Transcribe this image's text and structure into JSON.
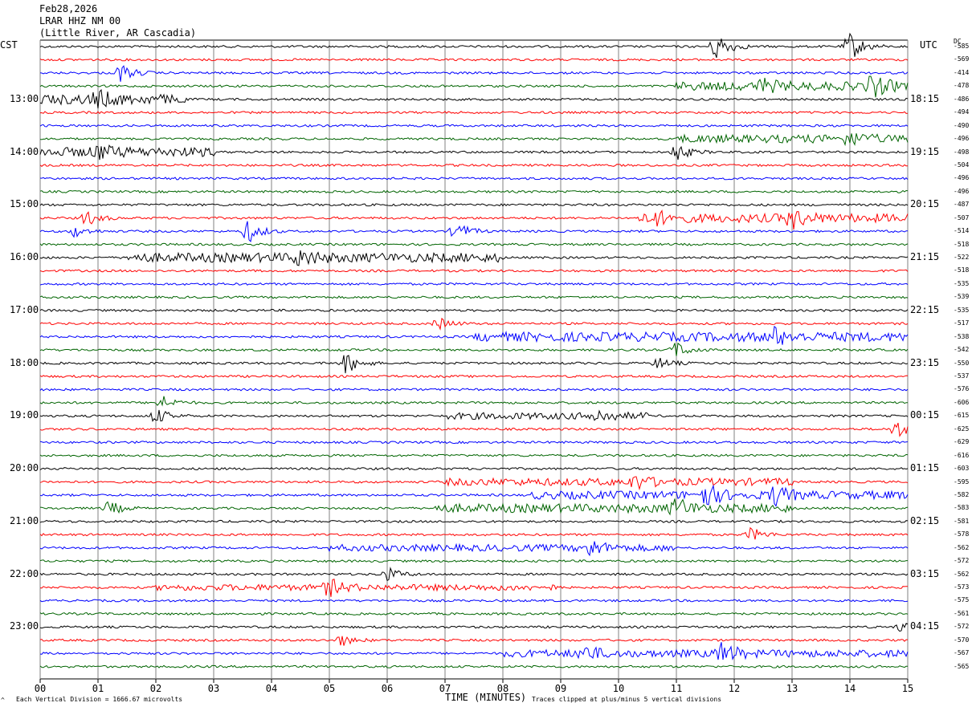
{
  "header": {
    "date": "Feb28,2026",
    "station": "LRAR HHZ NM 00",
    "location": "(Little River, AR Cascadia)"
  },
  "left_timezone": "CST",
  "right_timezone": "UTC",
  "dc_header": "DC",
  "footer": {
    "scale_note": "Each Vertical Division = 1666.67 microvolts",
    "clip_note": "Traces clipped at plus/minus 5 vertical divisions",
    "corner_mark": "^"
  },
  "colors": {
    "cycle": [
      "#000000",
      "#ff0000",
      "#0000ff",
      "#006400"
    ],
    "grid": "#808080"
  },
  "chart_data": {
    "type": "seismogram_helicorder",
    "xlabel": "TIME (MINUTES)",
    "x_ticks": [
      "00",
      "01",
      "02",
      "03",
      "04",
      "05",
      "06",
      "07",
      "08",
      "09",
      "10",
      "11",
      "12",
      "13",
      "14",
      "15"
    ],
    "xlim": [
      0,
      15
    ],
    "minutes_per_line": 15,
    "line_count": 48,
    "left_time_labels": [
      {
        "line": 4,
        "label": "13:00"
      },
      {
        "line": 8,
        "label": "14:00"
      },
      {
        "line": 12,
        "label": "15:00"
      },
      {
        "line": 16,
        "label": "16:00"
      },
      {
        "line": 20,
        "label": "17:00"
      },
      {
        "line": 24,
        "label": "18:00"
      },
      {
        "line": 28,
        "label": "19:00"
      },
      {
        "line": 32,
        "label": "20:00"
      },
      {
        "line": 36,
        "label": "21:00"
      },
      {
        "line": 40,
        "label": "22:00"
      },
      {
        "line": 44,
        "label": "23:00"
      }
    ],
    "right_time_labels": [
      {
        "line": 4,
        "label": "18:15"
      },
      {
        "line": 8,
        "label": "19:15"
      },
      {
        "line": 12,
        "label": "20:15"
      },
      {
        "line": 16,
        "label": "21:15"
      },
      {
        "line": 20,
        "label": "22:15"
      },
      {
        "line": 24,
        "label": "23:15"
      },
      {
        "line": 28,
        "label": "00:15"
      },
      {
        "line": 32,
        "label": "01:15"
      },
      {
        "line": 36,
        "label": "02:15"
      },
      {
        "line": 40,
        "label": "03:15"
      },
      {
        "line": 44,
        "label": "04:15"
      }
    ],
    "dc_offsets": [
      "-585",
      "-569",
      "-414",
      "-478",
      "-486",
      "-494",
      "-490",
      "-496",
      "-498",
      "-504",
      "-496",
      "-496",
      "-487",
      "-507",
      "-514",
      "-518",
      "-522",
      "-518",
      "-535",
      "-539",
      "-535",
      "-517",
      "-538",
      "-542",
      "-550",
      "-537",
      "-576",
      "-606",
      "-615",
      "-625",
      "-629",
      "-616",
      "-603",
      "-595",
      "-582",
      "-583",
      "-581",
      "-578",
      "-562",
      "-572",
      "-562",
      "-573",
      "-575",
      "-561",
      "-572",
      "-570",
      "-567",
      "-565"
    ],
    "events": [
      {
        "line": 0,
        "minute": 11.7,
        "amplitude": 2.6
      },
      {
        "line": 0,
        "minute": 14.0,
        "amplitude": 2.6
      },
      {
        "line": 2,
        "minute": 1.4,
        "amplitude": 1.6
      },
      {
        "line": 3,
        "minute": 12.5,
        "amplitude": 1.0
      },
      {
        "line": 3,
        "minute": 14.4,
        "amplitude": 1.8
      },
      {
        "line": 4,
        "minute": 1.0,
        "amplitude": 1.2
      },
      {
        "line": 7,
        "minute": 14.0,
        "amplitude": 1.0
      },
      {
        "line": 8,
        "minute": 1.0,
        "amplitude": 1.1
      },
      {
        "line": 8,
        "minute": 11.0,
        "amplitude": 1.6
      },
      {
        "line": 13,
        "minute": 0.8,
        "amplitude": 1.3
      },
      {
        "line": 13,
        "minute": 10.6,
        "amplitude": 1.2
      },
      {
        "line": 13,
        "minute": 13.0,
        "amplitude": 1.5
      },
      {
        "line": 14,
        "minute": 0.6,
        "amplitude": 1.0
      },
      {
        "line": 14,
        "minute": 3.6,
        "amplitude": 2.0
      },
      {
        "line": 14,
        "minute": 7.2,
        "amplitude": 1.6
      },
      {
        "line": 16,
        "minute": 4.5,
        "amplitude": 1.2
      },
      {
        "line": 21,
        "minute": 6.9,
        "amplitude": 1.0
      },
      {
        "line": 22,
        "minute": 12.7,
        "amplitude": 1.3
      },
      {
        "line": 23,
        "minute": 11.0,
        "amplitude": 1.4
      },
      {
        "line": 24,
        "minute": 5.3,
        "amplitude": 1.9
      },
      {
        "line": 24,
        "minute": 10.7,
        "amplitude": 1.0
      },
      {
        "line": 27,
        "minute": 2.1,
        "amplitude": 1.3
      },
      {
        "line": 28,
        "minute": 2.0,
        "amplitude": 1.4
      },
      {
        "line": 28,
        "minute": 9.6,
        "amplitude": 1.0
      },
      {
        "line": 29,
        "minute": 14.8,
        "amplitude": 1.6
      },
      {
        "line": 33,
        "minute": 10.3,
        "amplitude": 1.1
      },
      {
        "line": 34,
        "minute": 11.5,
        "amplitude": 1.9
      },
      {
        "line": 34,
        "minute": 12.7,
        "amplitude": 1.5
      },
      {
        "line": 35,
        "minute": 1.2,
        "amplitude": 1.3
      },
      {
        "line": 35,
        "minute": 11.0,
        "amplitude": 1.6
      },
      {
        "line": 37,
        "minute": 12.3,
        "amplitude": 1.2
      },
      {
        "line": 38,
        "minute": 9.5,
        "amplitude": 1.4
      },
      {
        "line": 40,
        "minute": 6.0,
        "amplitude": 1.2
      },
      {
        "line": 41,
        "minute": 5.0,
        "amplitude": 1.4
      },
      {
        "line": 44,
        "minute": 14.9,
        "amplitude": 1.0
      },
      {
        "line": 45,
        "minute": 5.2,
        "amplitude": 1.0
      },
      {
        "line": 46,
        "minute": 9.4,
        "amplitude": 1.3
      },
      {
        "line": 46,
        "minute": 11.8,
        "amplitude": 1.8
      }
    ],
    "noisy_segments": [
      {
        "line": 3,
        "from": 11.0,
        "to": 15.0,
        "level": 1.0
      },
      {
        "line": 4,
        "from": 0.0,
        "to": 2.5,
        "level": 1.2
      },
      {
        "line": 7,
        "from": 11.0,
        "to": 15.0,
        "level": 0.9
      },
      {
        "line": 8,
        "from": 0.0,
        "to": 3.0,
        "level": 1.1
      },
      {
        "line": 13,
        "from": 10.3,
        "to": 15.0,
        "level": 1.0
      },
      {
        "line": 16,
        "from": 1.5,
        "to": 8.0,
        "level": 1.1
      },
      {
        "line": 22,
        "from": 7.5,
        "to": 15.0,
        "level": 1.1
      },
      {
        "line": 28,
        "from": 7.0,
        "to": 10.5,
        "level": 0.7
      },
      {
        "line": 33,
        "from": 7.0,
        "to": 13.0,
        "level": 0.8
      },
      {
        "line": 34,
        "from": 8.5,
        "to": 15.0,
        "level": 0.9
      },
      {
        "line": 35,
        "from": 6.8,
        "to": 13.0,
        "level": 1.0
      },
      {
        "line": 38,
        "from": 5.0,
        "to": 11.0,
        "level": 0.7
      },
      {
        "line": 41,
        "from": 2.0,
        "to": 9.0,
        "level": 0.6
      },
      {
        "line": 46,
        "from": 8.0,
        "to": 15.0,
        "level": 0.8
      }
    ]
  }
}
